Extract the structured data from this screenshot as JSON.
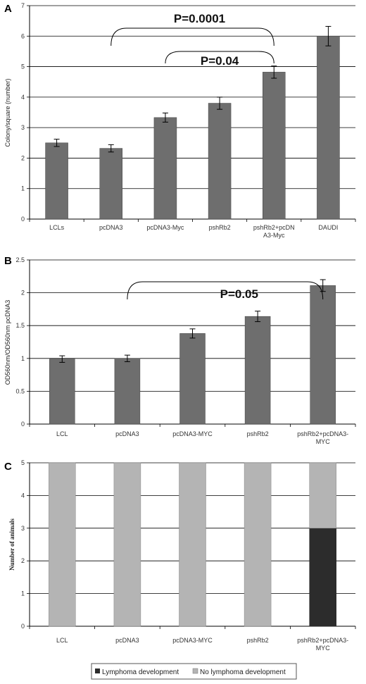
{
  "colors": {
    "bar": "#6e6e6e",
    "bar_light": "#b4b4b4",
    "bar_dark": "#2c2c2c",
    "grid": "#000000"
  },
  "chart_data": [
    {
      "type": "bar",
      "panel": "A",
      "ylabel": "Colony/square (number)",
      "ylim": [
        0,
        7
      ],
      "yticks": [
        "0",
        "1",
        "2",
        "3",
        "4",
        "5",
        "6",
        "7"
      ],
      "categories": [
        {
          "line1": "LCLs",
          "line2": ""
        },
        {
          "line1": "pcDNA3",
          "line2": ""
        },
        {
          "line1": "pcDNA3-Myc",
          "line2": ""
        },
        {
          "line1": "pshRb2",
          "line2": ""
        },
        {
          "line1": "pshRb2+pcDN",
          "line2": "A3-Myc"
        },
        {
          "line1": "DAUDI",
          "line2": ""
        }
      ],
      "values": [
        2.5,
        2.32,
        3.33,
        3.8,
        4.82,
        6.0
      ],
      "errors": [
        0.12,
        0.12,
        0.15,
        0.2,
        0.2,
        0.32
      ],
      "annotations": [
        {
          "text": "P=0.0001",
          "from": 1,
          "to": 4
        },
        {
          "text": "P=0.04",
          "from": 2,
          "to": 4
        }
      ]
    },
    {
      "type": "bar",
      "panel": "B",
      "ylabel": "OD560nm/OD560nm pcDNA3",
      "ylim": [
        0,
        2.5
      ],
      "yticks": [
        "0",
        "0.5",
        "1",
        "1.5",
        "2",
        "2.5"
      ],
      "categories": [
        {
          "line1": "LCL",
          "line2": ""
        },
        {
          "line1": "pcDNA3",
          "line2": ""
        },
        {
          "line1": "pcDNA3-MYC",
          "line2": ""
        },
        {
          "line1": "pshRb2",
          "line2": ""
        },
        {
          "line1": "pshRb2+pcDNA3-",
          "line2": "MYC"
        }
      ],
      "values": [
        0.99,
        1.0,
        1.38,
        1.64,
        2.11
      ],
      "errors": [
        0.05,
        0.05,
        0.07,
        0.08,
        0.09
      ],
      "annotations": [
        {
          "text": "P=0.05",
          "from": 1,
          "to": 4
        }
      ]
    },
    {
      "type": "stacked-bar",
      "panel": "C",
      "ylabel": "Number of animals",
      "ylim": [
        0,
        5
      ],
      "yticks": [
        "0",
        "1",
        "2",
        "3",
        "4",
        "5"
      ],
      "categories": [
        {
          "line1": "LCL",
          "line2": ""
        },
        {
          "line1": "pcDNA3",
          "line2": ""
        },
        {
          "line1": "pcDNA3-MYC",
          "line2": ""
        },
        {
          "line1": "pshRb2",
          "line2": ""
        },
        {
          "line1": "pshRb2+pcDNA3-",
          "line2": "MYC"
        }
      ],
      "series": [
        {
          "name": "Lymphoma development",
          "values": [
            0,
            0,
            0,
            0,
            3
          ]
        },
        {
          "name": "No lymphoma development",
          "values": [
            5,
            5,
            5,
            5,
            2
          ]
        }
      ],
      "legend": "bottom"
    }
  ]
}
